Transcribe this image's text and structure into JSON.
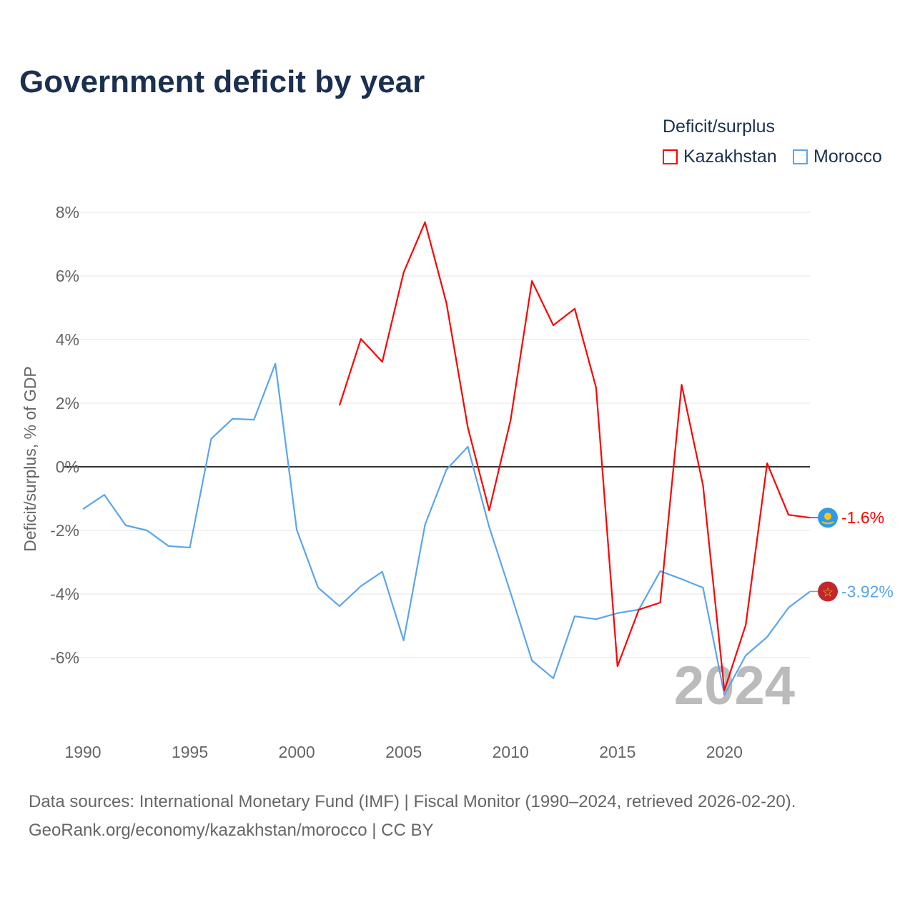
{
  "chart_data": {
    "type": "line",
    "title": "Government deficit by year",
    "xlabel": "",
    "ylabel": "Deficit/surplus, % of GDP",
    "xlim": [
      1990,
      2024
    ],
    "ylim": [
      -7.8,
      8.4
    ],
    "x_ticks": [
      1990,
      1995,
      2000,
      2005,
      2010,
      2015,
      2020
    ],
    "x_tick_labels": [
      "1990",
      "1995",
      "2000",
      "2005",
      "2010",
      "2015",
      "2020"
    ],
    "y_ticks": [
      8,
      6,
      4,
      2,
      0,
      -2,
      -4,
      -6
    ],
    "y_tick_labels": [
      "8%",
      "6%",
      "4%",
      "2%",
      "0%",
      "-2%",
      "-4%",
      "-6%"
    ],
    "grid": true,
    "legend_title": "Deficit/surplus",
    "legend_placement": "top-right",
    "year_annotation": "2024",
    "series": [
      {
        "name": "Kazakhstan",
        "color": "#ff0000",
        "end_label": "-1.6%",
        "x": [
          2002,
          2003,
          2004,
          2005,
          2006,
          2007,
          2008,
          2009,
          2010,
          2011,
          2012,
          2013,
          2014,
          2015,
          2016,
          2017,
          2018,
          2019,
          2020,
          2021,
          2022,
          2023,
          2024
        ],
        "values": [
          1.93,
          4.02,
          3.3,
          6.11,
          7.69,
          5.15,
          1.24,
          -1.37,
          1.46,
          5.84,
          4.45,
          4.97,
          2.49,
          -6.27,
          -4.49,
          -4.27,
          2.58,
          -0.58,
          -7.03,
          -4.97,
          0.11,
          -1.51,
          -1.6
        ]
      },
      {
        "name": "Morocco",
        "color": "#5aa5ee",
        "end_label": "-3.92%",
        "x": [
          1990,
          1991,
          1992,
          1993,
          1994,
          1995,
          1996,
          1997,
          1998,
          1999,
          2000,
          2001,
          2002,
          2003,
          2004,
          2005,
          2006,
          2007,
          2008,
          2009,
          2010,
          2011,
          2012,
          2013,
          2014,
          2015,
          2016,
          2017,
          2018,
          2019,
          2020,
          2021,
          2022,
          2023,
          2024
        ],
        "values": [
          -1.33,
          -0.88,
          -1.84,
          -2.0,
          -2.49,
          -2.54,
          0.88,
          1.51,
          1.48,
          3.24,
          -1.98,
          -3.8,
          -4.38,
          -3.75,
          -3.3,
          -5.46,
          -1.82,
          -0.09,
          0.63,
          -1.89,
          -3.96,
          -6.09,
          -6.65,
          -4.7,
          -4.79,
          -4.6,
          -4.49,
          -3.28,
          -3.53,
          -3.8,
          -7.17,
          -5.93,
          -5.35,
          -4.43,
          -3.92
        ]
      }
    ]
  },
  "footer": {
    "line1": "Data sources: International Monetary Fund (IMF) | Fiscal Monitor (1990–2024, retrieved 2026-02-20).",
    "line2": "GeoRank.org/economy/kazakhstan/morocco | CC BY"
  }
}
